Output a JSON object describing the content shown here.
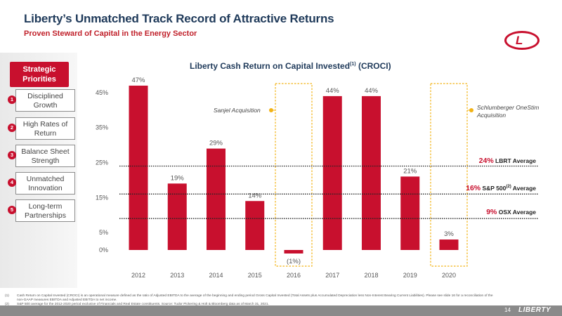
{
  "header": {
    "title": "Liberty’s Unmatched Track Record of Attractive Returns",
    "subtitle": "Proven Steward of Capital in the Energy Sector",
    "logo_letter": "L"
  },
  "sidebar": {
    "heading": "Strategic Priorities",
    "items": [
      {
        "num": "1",
        "label": "Disciplined Growth"
      },
      {
        "num": "2",
        "label": "High Rates of Return"
      },
      {
        "num": "3",
        "label": "Balance Sheet Strength"
      },
      {
        "num": "4",
        "label": "Unmatched Innovation"
      },
      {
        "num": "5",
        "label": "Long-term Partnerships"
      }
    ]
  },
  "chart_data": {
    "type": "bar",
    "title": "Liberty Cash Return on Capital Invested",
    "title_sup": "(1)",
    "title_suffix": " (CROCI)",
    "categories": [
      "2012",
      "2013",
      "2014",
      "2015",
      "2016",
      "2017",
      "2018",
      "2019",
      "2020"
    ],
    "values": [
      47,
      19,
      29,
      14,
      -1,
      44,
      44,
      21,
      3
    ],
    "value_labels": [
      "47%",
      "19%",
      "29%",
      "14%",
      "(1%)",
      "44%",
      "44%",
      "21%",
      "3%"
    ],
    "y_ticks": [
      0,
      5,
      15,
      25,
      35,
      45
    ],
    "y_tick_labels": [
      "0%",
      "5%",
      "15%",
      "25%",
      "35%",
      "45%"
    ],
    "ylim": [
      0,
      47
    ],
    "bar_color": "#c8102e",
    "reference_lines": [
      {
        "value": 24,
        "pct": "24%",
        "label": " LBRT Average",
        "sup": ""
      },
      {
        "value": 16,
        "pct": "16%",
        "label": " S&P 500",
        "sup": "(2)",
        "label_after": " Average"
      },
      {
        "value": 9,
        "pct": "9%",
        "label": " OSX Average",
        "sup": ""
      }
    ],
    "highlights": [
      {
        "category": "2016",
        "annotation": "Sanjel Acquisition"
      },
      {
        "category": "2020",
        "annotation": "Schlumberger OneStim Acquisition"
      }
    ]
  },
  "footnotes": [
    {
      "num": "(1)",
      "text": "Cash Return on Capital Invested (CROCI) is an operational measure defined as the ratio of Adjusted EBITDA to the average of the beginning and ending period Gross Capital Invested (Total Assets plus Accumulated Depreciation less Non-Interest Bearing Current Liabilities). Please see slide 16 for a reconciliation of the non-GAAP measures EBITDA and Adjusted EBITDA to net income."
    },
    {
      "num": "(2)",
      "text": "S&P 500 average for the 2012-2020 period exclusive of Financials and Real Estate constituents. Source: Tudor Pickering & Holt & Bloomberg data as of March 31, 2021."
    }
  ],
  "footer": {
    "page_number": "14",
    "brand": "LIBERTY"
  }
}
